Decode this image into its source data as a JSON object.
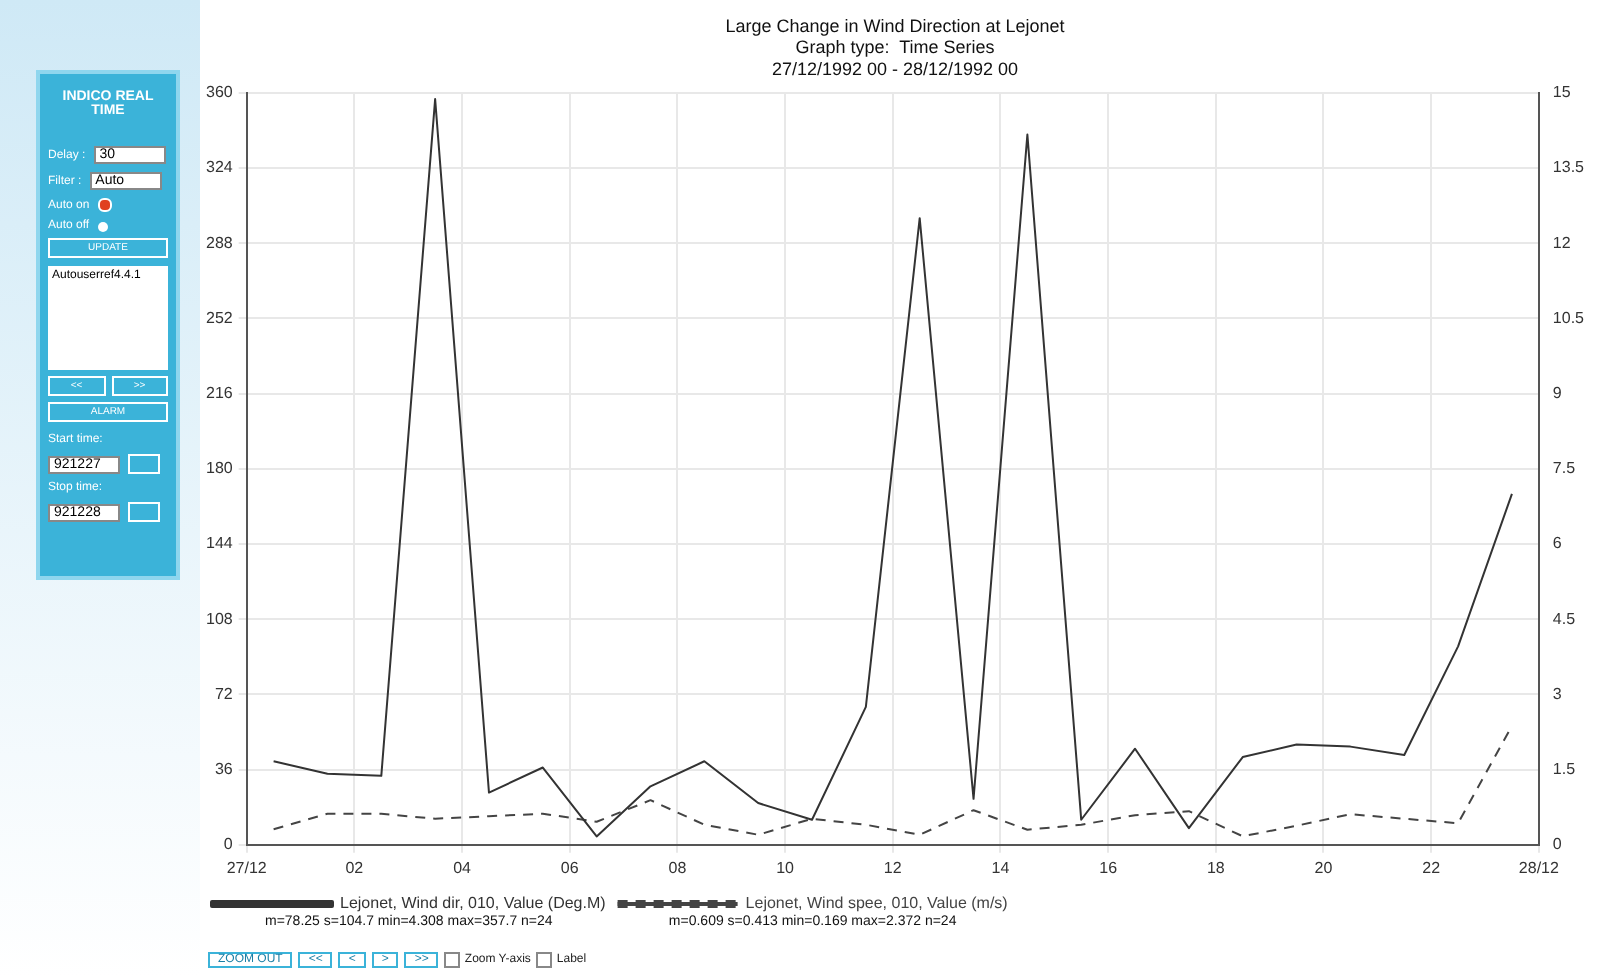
{
  "chart_data": [
    {
      "type": "line",
      "title": "Large Change in Wind Direction at Lejonet",
      "subtitle": "Graph type:  Time Series\n27/12/1992 00 - 28/12/1992 00",
      "x": [
        "1992-12-27T00:30",
        "1992-12-27T01:30",
        "1992-12-27T02:30",
        "1992-12-27T03:30",
        "1992-12-27T04:30",
        "1992-12-27T05:30",
        "1992-12-27T06:30",
        "1992-12-27T07:30",
        "1992-12-27T08:30",
        "1992-12-27T09:30",
        "1992-12-27T10:30",
        "1992-12-27T11:30",
        "1992-12-27T12:30",
        "1992-12-27T13:30",
        "1992-12-27T14:30",
        "1992-12-27T15:30",
        "1992-12-27T16:30",
        "1992-12-27T17:30",
        "1992-12-27T18:30",
        "1992-12-27T19:30",
        "1992-12-27T20:30",
        "1992-12-27T21:30",
        "1992-12-27T22:30",
        "1992-12-27T23:30"
      ],
      "series": [
        {
          "name": "Lejonet, Wind dir, 010, Value (Deg.M)",
          "color": "#333333",
          "line_style": "solid",
          "values": [
            40,
            34,
            33,
            357,
            25,
            37,
            4,
            28,
            40,
            20,
            12,
            66,
            300,
            22,
            340,
            12,
            46,
            8,
            42,
            48,
            47,
            43,
            95,
            168
          ]
        },
        {
          "name": "Lejonet, Wind spee, 010, Value (m/s)",
          "color": "#444444",
          "line_style": "dashed",
          "axis": "y2",
          "values": [
            0.31,
            0.62,
            0.62,
            0.52,
            0.57,
            0.62,
            0.46,
            0.89,
            0.4,
            0.2,
            0.52,
            0.4,
            0.2,
            0.69,
            0.3,
            0.4,
            0.59,
            0.67,
            0.17,
            0.38,
            0.61,
            0.52,
            0.43,
            2.37
          ]
        }
      ],
      "xlim": [
        "1992-12-27T00:00",
        "1992-12-28T00:00"
      ],
      "xticks": [
        {
          "value": "1992-12-27T00:00",
          "label": "27/12"
        },
        {
          "value": "1992-12-27T02:00",
          "label": "02"
        },
        {
          "value": "1992-12-27T04:00",
          "label": "04"
        },
        {
          "value": "1992-12-27T06:00",
          "label": "06"
        },
        {
          "value": "1992-12-27T08:00",
          "label": "08"
        },
        {
          "value": "1992-12-27T10:00",
          "label": "10"
        },
        {
          "value": "1992-12-27T12:00",
          "label": "12"
        },
        {
          "value": "1992-12-27T14:00",
          "label": "14"
        },
        {
          "value": "1992-12-27T16:00",
          "label": "16"
        },
        {
          "value": "1992-12-27T18:00",
          "label": "18"
        },
        {
          "value": "1992-12-27T20:00",
          "label": "20"
        },
        {
          "value": "1992-12-27T22:00",
          "label": "22"
        },
        {
          "value": "1992-12-28T00:00",
          "label": "28/12"
        }
      ],
      "ylim": [
        0,
        360
      ],
      "yticks": [
        0,
        36,
        72,
        108,
        144,
        180,
        216,
        252,
        288,
        324,
        360
      ],
      "y2lim": [
        0,
        15
      ],
      "y2ticks": [
        0,
        1.5,
        3,
        4.5,
        6,
        7.5,
        9,
        10.5,
        12,
        13.5,
        15
      ],
      "grid": true,
      "legend": "bottom",
      "marker": "none",
      "annotations": [
        "m=78.25 s=104.7 min=4.308 max=357.7 n=24",
        "m=0.609 s=0.413 min=0.169 max=2.372 n=24",
        "ZOOM OUT",
        "<<",
        "<",
        ">",
        ">>",
        "Zoom Y-axis",
        "Label"
      ]
    },
    {
      "type": "other",
      "annotations": [
        "INDICO REAL TIME",
        "Delay :",
        "30",
        "Filter :",
        "Auto",
        "Auto on",
        "Auto off",
        "UPDATE",
        "Autouserref4.4.1",
        "<<",
        ">>",
        "ALARM",
        "Start time:",
        "921227",
        "Stop time:",
        "921228"
      ]
    }
  ]
}
